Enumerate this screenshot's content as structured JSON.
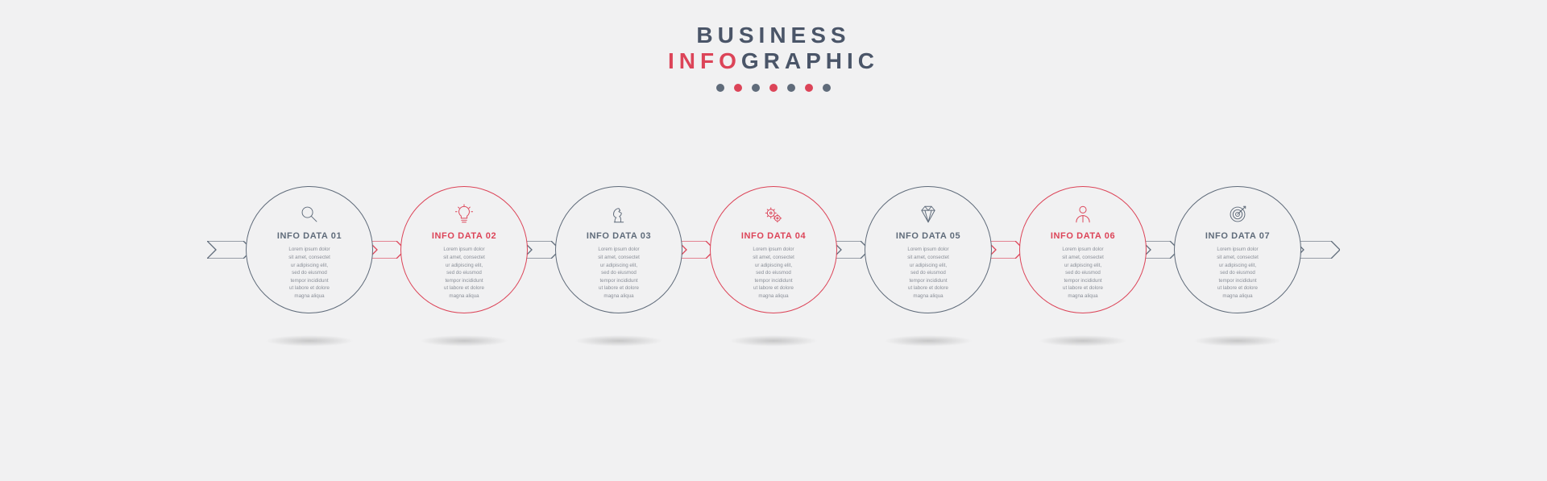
{
  "colors": {
    "slate": "#5f6b7a",
    "red": "#dc4458",
    "bg": "#f1f1f2",
    "bodytext": "#8a8f98"
  },
  "header": {
    "line1": "BUSINESS",
    "line2_accent": "INFO",
    "line2_rest": "GRAPHIC",
    "dot_colors": [
      "#5f6b7a",
      "#dc4458",
      "#5f6b7a",
      "#dc4458",
      "#5f6b7a",
      "#dc4458",
      "#5f6b7a"
    ]
  },
  "body_text": "Lorem ipsum dolor\nsit amet, consectet\nur adipiscing elit,\nsed do eiusmod\ntempor incididunt\nut labore et dolore\nmagna aliqua",
  "steps": [
    {
      "label": "INFO DATA 01",
      "color": "#5f6b7a",
      "icon": "search"
    },
    {
      "label": "INFO DATA 02",
      "color": "#dc4458",
      "icon": "bulb"
    },
    {
      "label": "INFO DATA 03",
      "color": "#5f6b7a",
      "icon": "knight"
    },
    {
      "label": "INFO DATA 04",
      "color": "#dc4458",
      "icon": "gears"
    },
    {
      "label": "INFO DATA 05",
      "color": "#5f6b7a",
      "icon": "diamond"
    },
    {
      "label": "INFO DATA 06",
      "color": "#dc4458",
      "icon": "person"
    },
    {
      "label": "INFO DATA 07",
      "color": "#5f6b7a",
      "icon": "target"
    }
  ],
  "layout": {
    "circle_diameter": 158,
    "arrow_gap": 46,
    "dot_size": 10,
    "dot_gap": 12,
    "title_fontsize": 28,
    "title_letterspacing": 6,
    "step_title_fontsize": 11,
    "body_fontsize": 6.2,
    "stroke_width": 1.4
  }
}
